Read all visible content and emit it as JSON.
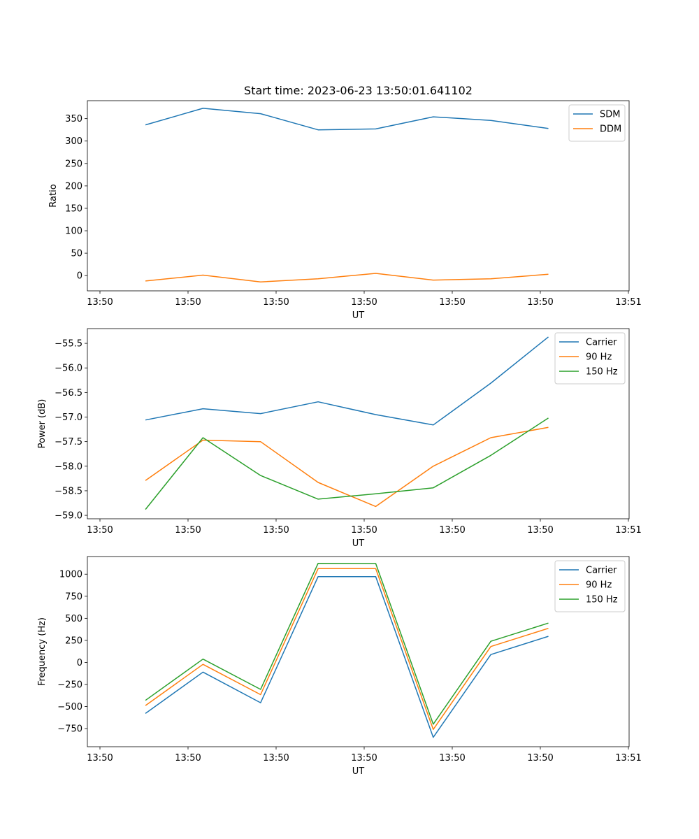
{
  "figure": {
    "title": "Start time: 2023-06-23 13:50:01.641102"
  },
  "chart_data": [
    {
      "type": "line",
      "title": "Start time: 2023-06-23 13:50:01.641102",
      "xlabel": "UT",
      "ylabel": "Ratio",
      "x_tick_labels": [
        "13:50",
        "13:50",
        "13:50",
        "13:50",
        "13:50",
        "13:50",
        "13:51"
      ],
      "y_ticks": [
        0,
        50,
        100,
        150,
        200,
        250,
        300,
        350
      ],
      "ylim": [
        -34,
        390
      ],
      "x_values_index": [
        1,
        2,
        3,
        4,
        5,
        6,
        7,
        8
      ],
      "legend_position": "top-right",
      "series": [
        {
          "name": "SDM",
          "color": "#1f77b4",
          "values": [
            336,
            373,
            361,
            325,
            327,
            354,
            346,
            328
          ]
        },
        {
          "name": "DDM",
          "color": "#ff7f0e",
          "values": [
            -12,
            1,
            -14,
            -7,
            5,
            -10,
            -7,
            3
          ]
        }
      ]
    },
    {
      "type": "line",
      "xlabel": "UT",
      "ylabel": "Power (dB)",
      "x_tick_labels": [
        "13:50",
        "13:50",
        "13:50",
        "13:50",
        "13:50",
        "13:50",
        "13:51"
      ],
      "y_ticks": [
        -59.0,
        -58.5,
        -58.0,
        -57.5,
        -57.0,
        -56.5,
        -56.0,
        -55.5
      ],
      "y_tick_labels": [
        "−59.0",
        "−58.5",
        "−58.0",
        "−57.5",
        "−57.0",
        "−56.5",
        "−56.0",
        "−55.5"
      ],
      "ylim": [
        -59.07,
        -55.2
      ],
      "x_values_index": [
        1,
        2,
        3,
        4,
        5,
        6,
        7,
        8
      ],
      "legend_position": "top-right",
      "series": [
        {
          "name": "Carrier",
          "color": "#1f77b4",
          "values": [
            -57.06,
            -56.83,
            -56.93,
            -56.69,
            -56.95,
            -57.16,
            -56.31,
            -55.37
          ]
        },
        {
          "name": "90 Hz",
          "color": "#ff7f0e",
          "values": [
            -58.29,
            -57.47,
            -57.5,
            -58.33,
            -58.82,
            -58.0,
            -57.42,
            -57.21
          ]
        },
        {
          "name": "150 Hz",
          "color": "#2ca02c",
          "values": [
            -58.88,
            -57.42,
            -58.19,
            -58.67,
            -58.56,
            -58.44,
            -57.78,
            -57.02
          ]
        }
      ]
    },
    {
      "type": "line",
      "xlabel": "UT",
      "ylabel": "Frequency (Hz)",
      "x_tick_labels": [
        "13:50",
        "13:50",
        "13:50",
        "13:50",
        "13:50",
        "13:50",
        "13:51"
      ],
      "y_ticks": [
        -750,
        -500,
        -250,
        0,
        250,
        500,
        750,
        1000
      ],
      "y_tick_labels": [
        "−750",
        "−500",
        "−250",
        "0",
        "250",
        "500",
        "750",
        "1000"
      ],
      "ylim": [
        -955,
        1200
      ],
      "x_values_index": [
        1,
        2,
        3,
        4,
        5,
        6,
        7,
        8
      ],
      "legend_position": "top-right",
      "series": [
        {
          "name": "Carrier",
          "color": "#1f77b4",
          "values": [
            -578,
            -110,
            -457,
            973,
            973,
            -849,
            89,
            296
          ]
        },
        {
          "name": "90 Hz",
          "color": "#ff7f0e",
          "values": [
            -488,
            -22,
            -365,
            1063,
            1063,
            -759,
            180,
            386
          ]
        },
        {
          "name": "150 Hz",
          "color": "#2ca02c",
          "values": [
            -430,
            38,
            -305,
            1123,
            1121,
            -700,
            240,
            446
          ]
        }
      ]
    }
  ]
}
